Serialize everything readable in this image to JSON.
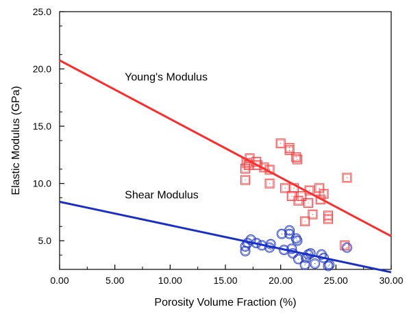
{
  "chart_data": {
    "type": "scatter",
    "title": "",
    "xlabel": "Porosity Volume Fraction (%)",
    "ylabel": "Elastic Modulus (GPa)",
    "xlim": [
      0,
      30
    ],
    "ylim": [
      2.5,
      25
    ],
    "x_ticks": [
      0,
      5,
      10,
      15,
      20,
      25,
      30
    ],
    "x_tick_labels": [
      "0.00",
      "5.00",
      "10.00",
      "15.00",
      "20.00",
      "25.00",
      "30.00"
    ],
    "y_ticks": [
      5,
      10,
      15,
      20,
      25
    ],
    "y_tick_labels": [
      "5.0",
      "10.0",
      "15.0",
      "20.0",
      "25.0"
    ],
    "grid": false,
    "legend": "none",
    "annotations": [
      {
        "text": "Young's Modulus",
        "x": 5.9,
        "y": 19.0
      },
      {
        "text": "Shear Modulus",
        "x": 5.9,
        "y": 8.7
      }
    ],
    "series": [
      {
        "marker": "square",
        "color": "#ff3333",
        "points": [
          [
            16.8,
            11.3
          ],
          [
            16.9,
            11.8
          ],
          [
            16.8,
            10.3
          ],
          [
            17.1,
            11.6
          ],
          [
            17.2,
            12.2
          ],
          [
            17.8,
            11.9
          ],
          [
            17.9,
            11.6
          ],
          [
            18.5,
            11.4
          ],
          [
            19.0,
            11.2
          ],
          [
            19.0,
            10.0
          ],
          [
            20.0,
            13.5
          ],
          [
            20.4,
            9.6
          ],
          [
            20.8,
            13.1
          ],
          [
            20.8,
            12.9
          ],
          [
            21.0,
            8.9
          ],
          [
            21.2,
            9.6
          ],
          [
            21.4,
            12.3
          ],
          [
            21.5,
            12.1
          ],
          [
            21.6,
            8.5
          ],
          [
            21.9,
            8.9
          ],
          [
            22.2,
            6.7
          ],
          [
            22.5,
            8.3
          ],
          [
            22.6,
            9.4
          ],
          [
            22.9,
            7.3
          ],
          [
            23.5,
            9.6
          ],
          [
            23.6,
            8.6
          ],
          [
            23.9,
            9.1
          ],
          [
            24.3,
            7.2
          ],
          [
            24.3,
            6.9
          ],
          [
            25.8,
            4.6
          ],
          [
            26.0,
            10.5
          ]
        ]
      },
      {
        "marker": "circle",
        "color": "#1a33cc",
        "points": [
          [
            16.8,
            4.1
          ],
          [
            16.8,
            4.5
          ],
          [
            17.0,
            4.8
          ],
          [
            17.3,
            5.1
          ],
          [
            17.8,
            4.8
          ],
          [
            18.3,
            4.6
          ],
          [
            19.0,
            4.4
          ],
          [
            19.1,
            4.7
          ],
          [
            20.1,
            5.6
          ],
          [
            20.3,
            4.2
          ],
          [
            20.8,
            5.6
          ],
          [
            20.8,
            5.9
          ],
          [
            21.0,
            4.3
          ],
          [
            21.1,
            3.9
          ],
          [
            21.4,
            5.2
          ],
          [
            21.5,
            5.0
          ],
          [
            21.6,
            3.4
          ],
          [
            22.2,
            2.9
          ],
          [
            22.3,
            3.5
          ],
          [
            22.5,
            3.8
          ],
          [
            22.7,
            3.9
          ],
          [
            23.1,
            3.0
          ],
          [
            23.7,
            3.8
          ],
          [
            23.9,
            3.5
          ],
          [
            24.3,
            2.8
          ],
          [
            24.4,
            2.9
          ],
          [
            26.0,
            4.4
          ]
        ]
      }
    ],
    "fit_lines": [
      {
        "name": "Young's Modulus",
        "color": "#ff2a2a",
        "x": [
          0,
          30
        ],
        "y": [
          20.75,
          5.4
        ]
      },
      {
        "name": "Shear Modulus",
        "color": "#1a2fc4",
        "x": [
          0,
          30
        ],
        "y": [
          8.4,
          2.25
        ]
      }
    ]
  }
}
